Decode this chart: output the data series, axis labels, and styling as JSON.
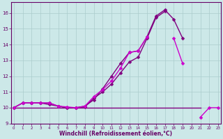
{
  "title": "",
  "xlabel": "Windchill (Refroidissement éolien,°C)",
  "ylabel": "",
  "x_values": [
    0,
    1,
    2,
    3,
    4,
    5,
    6,
    7,
    8,
    9,
    10,
    11,
    12,
    13,
    14,
    15,
    16,
    17,
    18,
    19,
    20,
    21,
    22,
    23
  ],
  "lines": [
    {
      "y": [
        10.0,
        10.3,
        10.3,
        10.3,
        10.3,
        10.1,
        10.0,
        10.0,
        10.1,
        10.5,
        11.2,
        12.0,
        12.8,
        13.5,
        13.6,
        14.5,
        15.8,
        16.2,
        15.6,
        14.4,
        null,
        null,
        null,
        null
      ],
      "color": "#800080",
      "marker": "D",
      "linewidth": 1.0,
      "markersize": 2.5
    },
    {
      "y": [
        10.0,
        10.3,
        10.3,
        10.3,
        10.2,
        10.1,
        10.0,
        10.0,
        10.05,
        10.6,
        11.0,
        11.5,
        12.2,
        12.9,
        13.2,
        14.4,
        15.7,
        16.1,
        null,
        null,
        null,
        null,
        null,
        null
      ],
      "color": "#800080",
      "marker": "D",
      "linewidth": 1.0,
      "markersize": 2.5
    },
    {
      "y": [
        10.0,
        10.0,
        10.0,
        10.0,
        10.0,
        10.0,
        10.0,
        10.0,
        10.0,
        10.0,
        10.0,
        10.0,
        10.0,
        10.0,
        10.0,
        10.0,
        10.0,
        10.0,
        10.0,
        10.0,
        10.0,
        10.0,
        null,
        null
      ],
      "color": "#800080",
      "marker": null,
      "linewidth": 1.0,
      "markersize": 0
    },
    {
      "y": [
        10.0,
        10.3,
        10.3,
        10.3,
        10.3,
        10.1,
        10.05,
        10.0,
        10.1,
        10.7,
        11.15,
        11.7,
        12.5,
        13.5,
        13.6,
        14.5,
        null,
        null,
        14.4,
        12.8,
        null,
        9.4,
        10.0,
        10.0
      ],
      "color": "#cc00cc",
      "marker": "D",
      "linewidth": 1.0,
      "markersize": 2.5
    }
  ],
  "xlim": [
    -0.3,
    23.3
  ],
  "ylim": [
    9.0,
    16.7
  ],
  "yticks": [
    9,
    10,
    11,
    12,
    13,
    14,
    15,
    16
  ],
  "xticks": [
    0,
    1,
    2,
    3,
    4,
    5,
    6,
    7,
    8,
    9,
    10,
    11,
    12,
    13,
    14,
    15,
    16,
    17,
    18,
    19,
    20,
    21,
    22,
    23
  ],
  "bg_color": "#cce8e8",
  "grid_color": "#aacccc",
  "text_color": "#660066",
  "tick_color": "#660066",
  "spine_color": "#660066"
}
